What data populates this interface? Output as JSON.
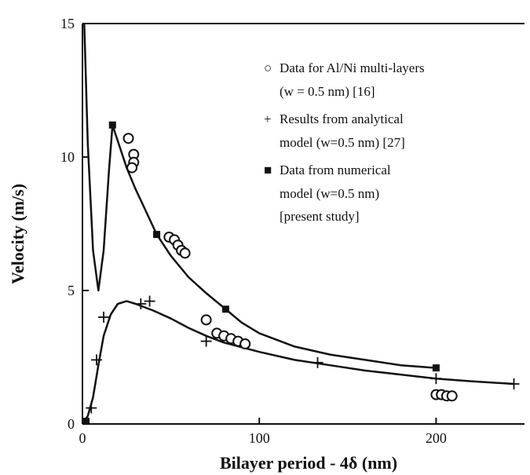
{
  "chart_data": {
    "type": "scatter",
    "title": "",
    "xlabel": "Bilayer period - 4δ (nm)",
    "ylabel": "Velocity (m/s)",
    "xlim": [
      0,
      250
    ],
    "ylim": [
      0,
      15
    ],
    "x_ticks": [
      0,
      100,
      200
    ],
    "y_ticks": [
      0,
      5,
      10,
      15
    ],
    "x_tick_labels": [
      "0",
      "100",
      "200"
    ],
    "y_tick_labels": [
      "0",
      "5",
      "10",
      "15"
    ],
    "legend_position": "top-right",
    "series": [
      {
        "name": "Data for Al/Ni multi-layers",
        "legend_lines": [
          "Data for Al/Ni multi-layers",
          "(w = 0.5 nm) [16]"
        ],
        "marker": "open-circle",
        "x": [
          26,
          29,
          29,
          28,
          49,
          52,
          54,
          56,
          58,
          70,
          76,
          80,
          84,
          88,
          92,
          200,
          203,
          206,
          209
        ],
        "y": [
          10.7,
          10.1,
          9.8,
          9.6,
          7.0,
          6.9,
          6.7,
          6.5,
          6.4,
          3.9,
          3.4,
          3.3,
          3.2,
          3.1,
          3.0,
          1.1,
          1.1,
          1.05,
          1.05
        ]
      },
      {
        "name": "Results from analytical model (w=0.5 nm) [27]",
        "legend_lines": [
          "Results from analytical",
          "model (w=0.5 nm) [27]"
        ],
        "marker": "plus",
        "x": [
          5,
          8,
          12,
          33,
          38,
          70,
          133,
          200,
          244
        ],
        "y": [
          0.6,
          2.4,
          4.0,
          4.5,
          4.6,
          3.1,
          2.3,
          1.7,
          1.5
        ]
      },
      {
        "name": "Data from numerical model (w=0.5 nm) [present study]",
        "legend_lines": [
          "Data from numerical",
          "model (w=0.5 nm)",
          "[present study]"
        ],
        "marker": "filled-square",
        "x": [
          2,
          17,
          42,
          81,
          200
        ],
        "y": [
          0.1,
          11.2,
          7.1,
          4.3,
          2.1
        ]
      }
    ],
    "curves": [
      {
        "x": [
          1,
          3,
          6,
          9,
          12,
          15,
          17,
          20,
          25,
          30,
          35,
          42,
          50,
          60,
          70,
          81,
          90,
          100,
          120,
          140,
          160,
          180,
          200
        ],
        "y": [
          15,
          10.5,
          6.5,
          5.0,
          6.5,
          9.5,
          11.2,
          10.6,
          9.6,
          8.8,
          8.1,
          7.1,
          6.3,
          5.5,
          4.9,
          4.3,
          3.8,
          3.4,
          2.9,
          2.6,
          2.4,
          2.2,
          2.1
        ]
      },
      {
        "x": [
          0,
          3,
          6,
          9,
          12,
          16,
          20,
          25,
          30,
          40,
          50,
          60,
          70,
          80,
          100,
          120,
          140,
          160,
          180,
          200,
          220,
          244
        ],
        "y": [
          0,
          0.3,
          1.0,
          2.2,
          3.3,
          4.1,
          4.5,
          4.6,
          4.5,
          4.25,
          3.95,
          3.6,
          3.3,
          3.05,
          2.7,
          2.4,
          2.2,
          2.0,
          1.85,
          1.7,
          1.6,
          1.5
        ]
      }
    ]
  },
  "legend": {
    "symbols": {
      "circle": "○",
      "plus": "+",
      "square": "■"
    }
  }
}
